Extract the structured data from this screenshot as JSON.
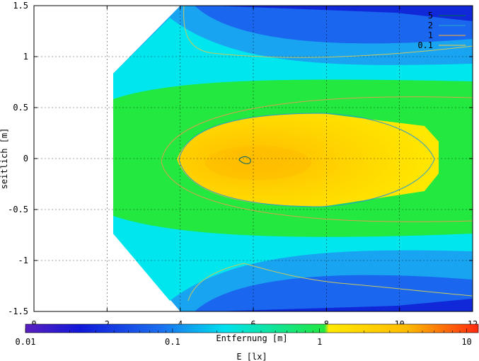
{
  "chart_data": {
    "type": "heatmap",
    "title": "",
    "xlabel": "Entfernung [m]",
    "ylabel": "seitlich [m]",
    "xlim": [
      0,
      12
    ],
    "ylim": [
      -1.5,
      1.5
    ],
    "x_ticks": [
      "0",
      "2",
      "4",
      "6",
      "8",
      "10",
      "12"
    ],
    "y_ticks": [
      "1.5",
      "1",
      "0.5",
      "0",
      "-0.5",
      "-1",
      "-1.5"
    ],
    "grid": true,
    "contour_levels": [
      {
        "label": "5",
        "value": 5,
        "color": "#00606a"
      },
      {
        "label": "2",
        "value": 2,
        "color": "#2a9ad0"
      },
      {
        "label": "1",
        "value": 1,
        "color": "#dba050"
      },
      {
        "label": "0.1",
        "value": 0.1,
        "color": "#c8c860"
      }
    ],
    "colorbar": {
      "label": "E [lx]",
      "scale": "log",
      "range": [
        0.01,
        12
      ],
      "tick_labels": [
        "0.01",
        "0.1",
        "1",
        "10"
      ],
      "tick_values": [
        0.01,
        0.1,
        1,
        10
      ]
    },
    "colors": {
      "purple": "#5a1fbf",
      "blue": "#0a1fd8",
      "blue2": "#1860ee",
      "skyblue": "#1aa0f0",
      "cyan": "#00e8ee",
      "green": "#22e840",
      "yellow": "#ffe800",
      "orange": "#ffbc00",
      "red": "#ff2a10"
    }
  }
}
